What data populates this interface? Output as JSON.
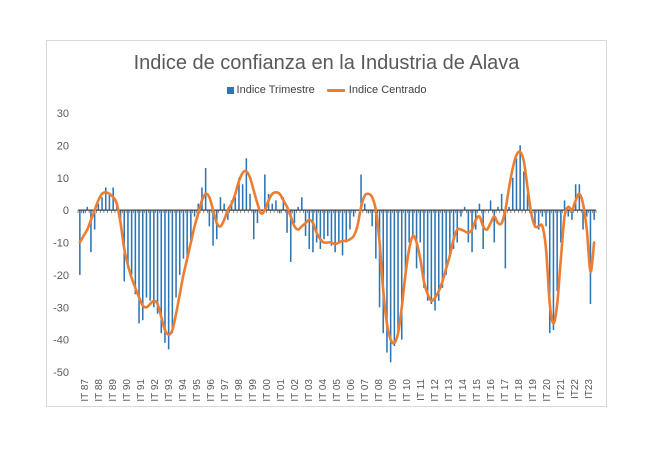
{
  "chart_data": {
    "type": "bar+line",
    "title": "Indice de confianza en la Industria de Alava",
    "xlabel": "",
    "ylabel": "",
    "ylim": [
      -50,
      30
    ],
    "yticks": [
      30,
      20,
      10,
      0,
      -10,
      -20,
      -30,
      -40,
      -50
    ],
    "legend_position": "top",
    "grid": false,
    "colors": {
      "bars": "#2e75b6",
      "line": "#ed7d31"
    },
    "legend": [
      "Indice Trimestre",
      "Indice Centrado"
    ],
    "x_labels": [
      "IT 87",
      "IT 88",
      "IT 89",
      "IT 90",
      "IT 91",
      "IT 92",
      "IT 93",
      "IT 94",
      "IT 95",
      "IT 96",
      "IT 97",
      "IT 98",
      "IT 99",
      "IT 00",
      "IT 01",
      "IT 02",
      "IT 03",
      "IT 04",
      "IT 05",
      "IT 06",
      "IT 07",
      "IT 08",
      "IT 09",
      "IT 10",
      "IT 11",
      "IT 12",
      "IT 13",
      "IT 14",
      "IT 15",
      "IT 16",
      "IT 17",
      "IT 18",
      "IT 19",
      "IT 20",
      "IT21",
      "IT22",
      "IT23"
    ],
    "series": [
      {
        "name": "Indice Trimestre",
        "type": "bar",
        "values": [
          -20,
          -1,
          1,
          -13,
          -6,
          2,
          4,
          7,
          5,
          7,
          2,
          -5,
          -22,
          -18,
          -20,
          -26,
          -35,
          -34,
          -27,
          -28,
          -30,
          -32,
          -38,
          -41,
          -43,
          -38,
          -27,
          -20,
          -15,
          -16,
          -10,
          -2,
          2,
          7,
          13,
          -5,
          -11,
          -9,
          4,
          2,
          -3,
          3,
          4,
          10,
          8,
          16,
          5,
          -9,
          -4,
          0,
          11,
          5,
          2,
          3,
          -1,
          4,
          -7,
          -16,
          -4,
          1,
          4,
          -8,
          -12,
          -13,
          -10,
          -12,
          -9,
          -8,
          -11,
          -13,
          -10,
          -14,
          -10,
          -6,
          -2,
          0,
          11,
          2,
          -1,
          -5,
          -15,
          -30,
          -38,
          -44,
          -47,
          -42,
          -38,
          -40,
          -20,
          -10,
          -8,
          -18,
          -10,
          -24,
          -28,
          -29,
          -31,
          -28,
          -24,
          -20,
          -14,
          -12,
          -10,
          -2,
          1,
          -10,
          -13,
          -6,
          2,
          -12,
          0,
          3,
          -10,
          1,
          5,
          -18,
          1,
          10,
          16,
          20,
          12,
          5,
          -1,
          -5,
          -6,
          -2,
          -5,
          -38,
          -37,
          -25,
          -10,
          3,
          -2,
          -3,
          8,
          8,
          -6,
          -2,
          -29,
          -3
        ]
      },
      {
        "name": "Indice Centrado",
        "type": "line",
        "values": [
          -10,
          -8,
          -6,
          -3,
          0,
          3,
          5,
          5.5,
          5,
          4,
          2,
          -4,
          -12,
          -17,
          -21,
          -24,
          -27,
          -29.5,
          -30,
          -29,
          -28,
          -29,
          -33,
          -37,
          -38.5,
          -37,
          -32,
          -26,
          -20,
          -15,
          -10,
          -5,
          -1,
          3,
          5,
          4,
          0,
          -4,
          -5,
          -3,
          0,
          2,
          5,
          9,
          11.5,
          12,
          10,
          6,
          2,
          -1,
          0,
          3,
          5,
          5.5,
          5,
          3,
          1,
          -2,
          -5,
          -6,
          -5,
          -4,
          -3,
          -4,
          -7,
          -9,
          -10,
          -10,
          -10,
          -10.5,
          -10,
          -9.5,
          -9.5,
          -9,
          -8,
          -5,
          1,
          4.5,
          5,
          4,
          0,
          -10,
          -25,
          -35,
          -40,
          -41,
          -38,
          -30,
          -20,
          -12,
          -8,
          -10,
          -15,
          -22,
          -26,
          -28,
          -27,
          -25,
          -22,
          -18,
          -14,
          -9,
          -6,
          -6,
          -6.5,
          -7,
          -6,
          -3,
          -2,
          -5,
          -6,
          -4,
          -2,
          -4,
          -4,
          0,
          7,
          13,
          17,
          18,
          15,
          7,
          -1,
          -5,
          -5,
          -5,
          -12,
          -29,
          -35,
          -29,
          -15,
          -2,
          1,
          0,
          3,
          5,
          2,
          -6,
          -19,
          -10
        ]
      }
    ]
  }
}
